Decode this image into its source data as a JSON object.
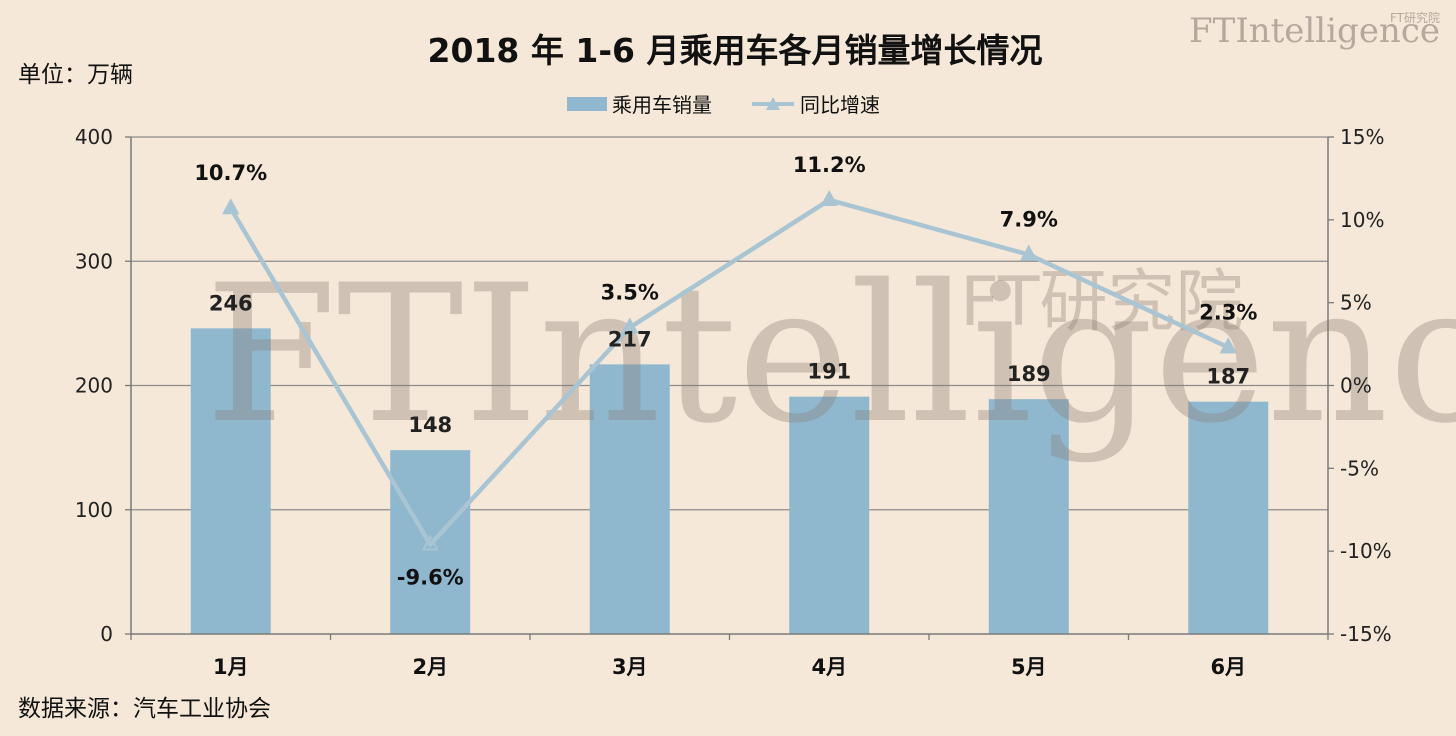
{
  "chart_data": {
    "type": "bar",
    "title": "2018 年 1-6 月乘用车各月销量增长情况",
    "unit_label": "单位：万辆",
    "source": "数据来源：汽车工业协会",
    "categories": [
      "1月",
      "2月",
      "3月",
      "4月",
      "5月",
      "6月"
    ],
    "series": [
      {
        "name": "乘用车销量",
        "type": "bar",
        "axis": "left",
        "values": [
          246,
          148,
          217,
          191,
          189,
          187
        ],
        "labels": [
          "246",
          "148",
          "217",
          "191",
          "189",
          "187"
        ],
        "color": "#8fb8cf"
      },
      {
        "name": "同比增速",
        "type": "line",
        "axis": "right",
        "values": [
          10.7,
          -9.6,
          3.5,
          11.2,
          7.9,
          2.3
        ],
        "labels": [
          "10.7%",
          "-9.6%",
          "3.5%",
          "11.2%",
          "7.9%",
          "2.3%"
        ],
        "color": "#a9c4d2"
      }
    ],
    "y_left": {
      "range": [
        0,
        400
      ],
      "ticks": [
        "0",
        "100",
        "200",
        "300",
        "400"
      ]
    },
    "y_right": {
      "range": [
        -15,
        15
      ],
      "ticks": [
        "-15%",
        "-10%",
        "-5%",
        "0%",
        "5%",
        "10%",
        "15%"
      ]
    },
    "grid": true,
    "legend_position": "top-center"
  },
  "watermark": {
    "text": "FTIntelligence",
    "cn_text": "FT研究院"
  },
  "logo": {
    "text": "FTIntelligence",
    "cn_text": "FT研究院"
  }
}
